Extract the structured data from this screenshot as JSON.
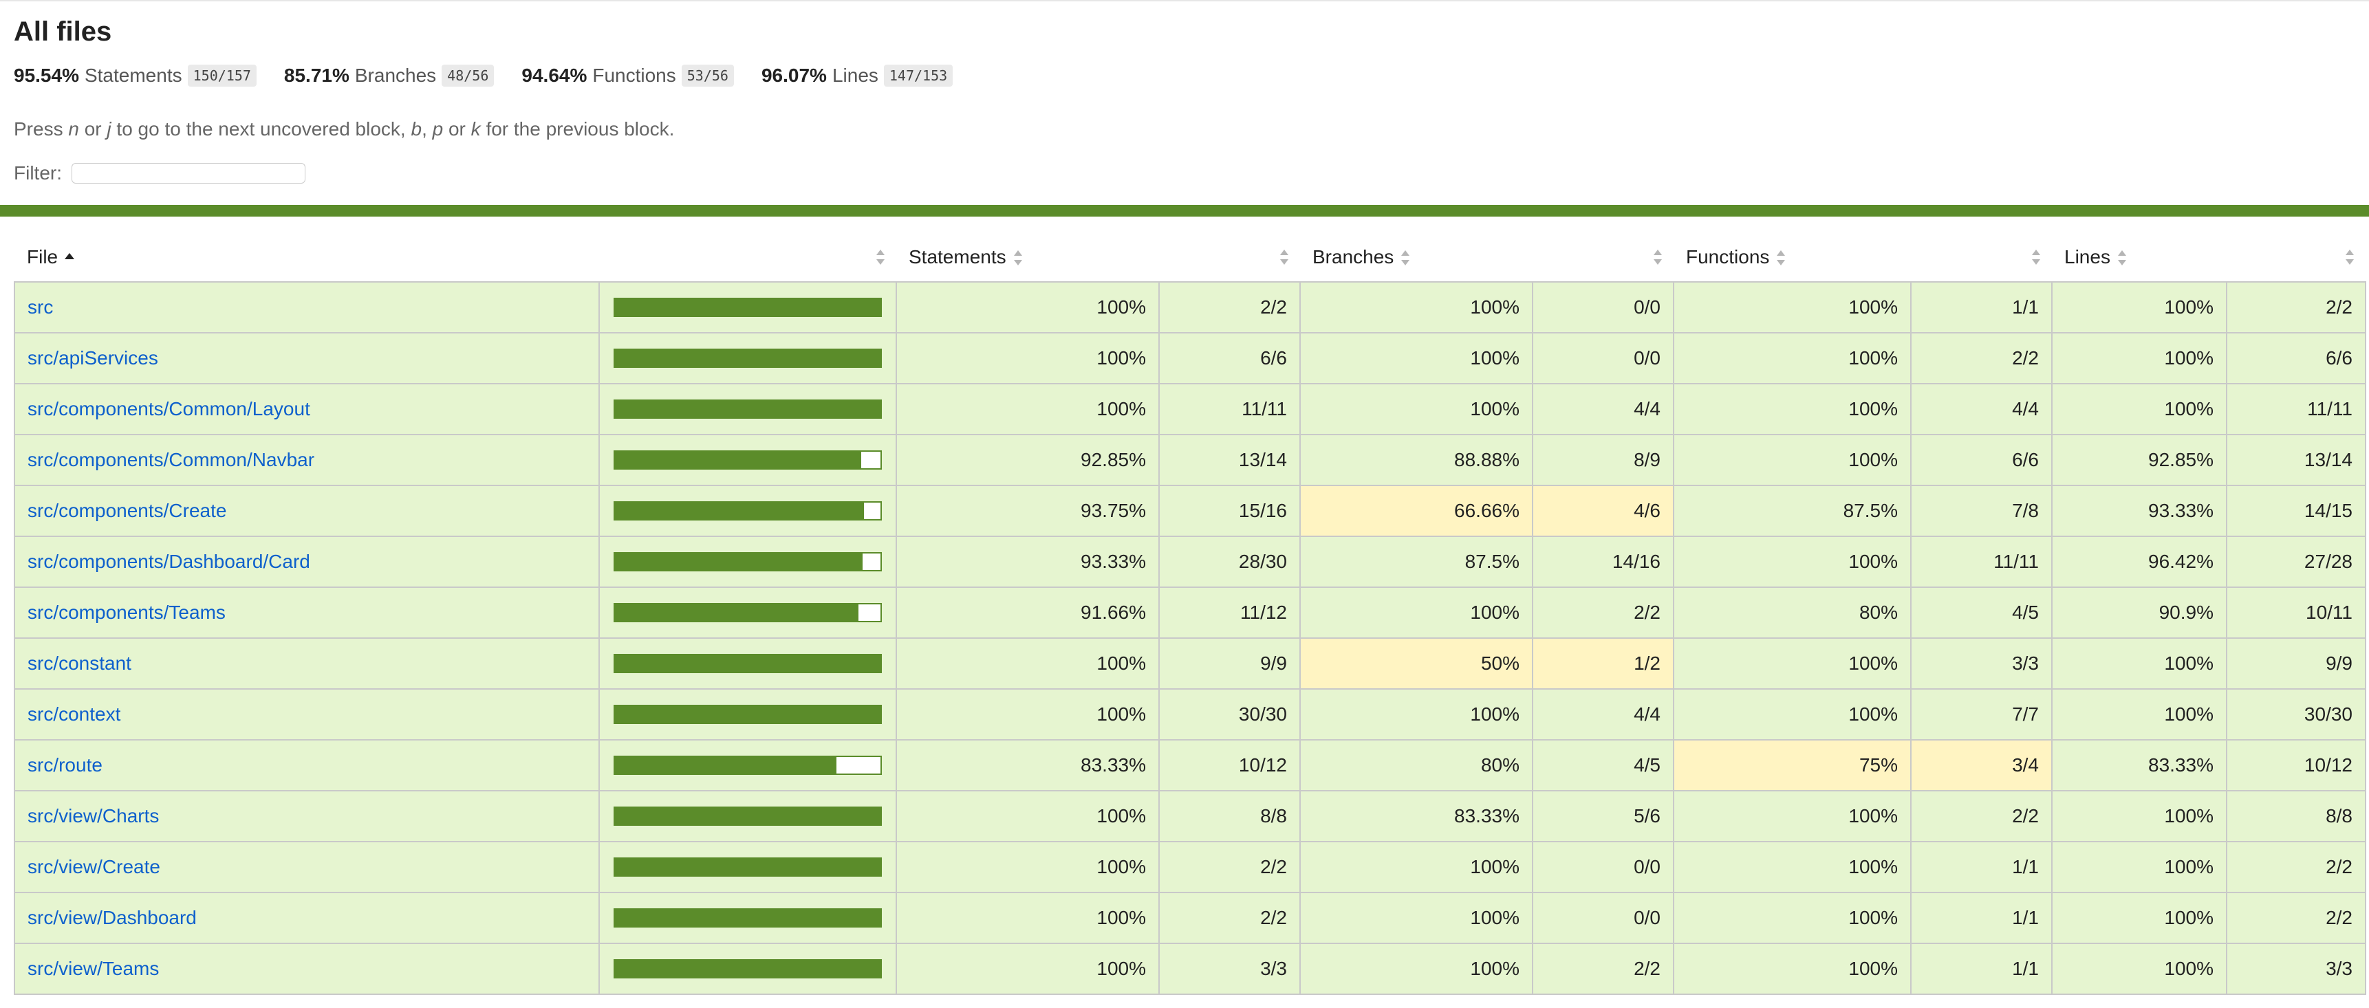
{
  "title": "All files",
  "summary": [
    {
      "pct": "95.54%",
      "label": "Statements",
      "frac": "150/157"
    },
    {
      "pct": "85.71%",
      "label": "Branches",
      "frac": "48/56"
    },
    {
      "pct": "94.64%",
      "label": "Functions",
      "frac": "53/56"
    },
    {
      "pct": "96.07%",
      "label": "Lines",
      "frac": "147/153"
    }
  ],
  "hint": {
    "t1": "Press ",
    "k1": "n",
    "t2": " or ",
    "k2": "j",
    "t3": " to go to the next uncovered block, ",
    "k3": "b",
    "t4": ", ",
    "k4": "p",
    "t5": " or ",
    "k5": "k",
    "t6": " for the previous block."
  },
  "filter": {
    "label": "Filter:",
    "value": ""
  },
  "headers": {
    "file": "File",
    "statements": "Statements",
    "branches": "Branches",
    "functions": "Functions",
    "lines": "Lines"
  },
  "colors": {
    "high": "#e6f5d0",
    "medium": "#fff4c2",
    "bar": "#5b8c2a",
    "link": "#0e60cc",
    "accent_bar": "#5b8c2a"
  },
  "rows": [
    {
      "file": "src",
      "fill": 1.0,
      "stmt_pct": "100%",
      "stmt": "2/2",
      "br_pct": "100%",
      "br": "0/0",
      "fn_pct": "100%",
      "fn": "1/1",
      "ln_pct": "100%",
      "ln": "2/2"
    },
    {
      "file": "src/apiServices",
      "fill": 1.0,
      "stmt_pct": "100%",
      "stmt": "6/6",
      "br_pct": "100%",
      "br": "0/0",
      "fn_pct": "100%",
      "fn": "2/2",
      "ln_pct": "100%",
      "ln": "6/6"
    },
    {
      "file": "src/components/Common/Layout",
      "fill": 1.0,
      "stmt_pct": "100%",
      "stmt": "11/11",
      "br_pct": "100%",
      "br": "4/4",
      "fn_pct": "100%",
      "fn": "4/4",
      "ln_pct": "100%",
      "ln": "11/11"
    },
    {
      "file": "src/components/Common/Navbar",
      "fill": 0.9285,
      "stmt_pct": "92.85%",
      "stmt": "13/14",
      "br_pct": "88.88%",
      "br": "8/9",
      "fn_pct": "100%",
      "fn": "6/6",
      "ln_pct": "92.85%",
      "ln": "13/14"
    },
    {
      "file": "src/components/Create",
      "fill": 0.9375,
      "stmt_pct": "93.75%",
      "stmt": "15/16",
      "br_pct": "66.66%",
      "br": "4/6",
      "br_medium": true,
      "fn_pct": "87.5%",
      "fn": "7/8",
      "ln_pct": "93.33%",
      "ln": "14/15"
    },
    {
      "file": "src/components/Dashboard/Card",
      "fill": 0.9333,
      "stmt_pct": "93.33%",
      "stmt": "28/30",
      "br_pct": "87.5%",
      "br": "14/16",
      "fn_pct": "100%",
      "fn": "11/11",
      "ln_pct": "96.42%",
      "ln": "27/28"
    },
    {
      "file": "src/components/Teams",
      "fill": 0.9166,
      "stmt_pct": "91.66%",
      "stmt": "11/12",
      "br_pct": "100%",
      "br": "2/2",
      "fn_pct": "80%",
      "fn": "4/5",
      "ln_pct": "90.9%",
      "ln": "10/11"
    },
    {
      "file": "src/constant",
      "fill": 1.0,
      "stmt_pct": "100%",
      "stmt": "9/9",
      "br_pct": "50%",
      "br": "1/2",
      "br_medium": true,
      "fn_pct": "100%",
      "fn": "3/3",
      "ln_pct": "100%",
      "ln": "9/9"
    },
    {
      "file": "src/context",
      "fill": 1.0,
      "stmt_pct": "100%",
      "stmt": "30/30",
      "br_pct": "100%",
      "br": "4/4",
      "fn_pct": "100%",
      "fn": "7/7",
      "ln_pct": "100%",
      "ln": "30/30"
    },
    {
      "file": "src/route",
      "fill": 0.8333,
      "stmt_pct": "83.33%",
      "stmt": "10/12",
      "br_pct": "80%",
      "br": "4/5",
      "fn_pct": "75%",
      "fn": "3/4",
      "fn_medium": true,
      "ln_pct": "83.33%",
      "ln": "10/12"
    },
    {
      "file": "src/view/Charts",
      "fill": 1.0,
      "stmt_pct": "100%",
      "stmt": "8/8",
      "br_pct": "83.33%",
      "br": "5/6",
      "fn_pct": "100%",
      "fn": "2/2",
      "ln_pct": "100%",
      "ln": "8/8"
    },
    {
      "file": "src/view/Create",
      "fill": 1.0,
      "stmt_pct": "100%",
      "stmt": "2/2",
      "br_pct": "100%",
      "br": "0/0",
      "fn_pct": "100%",
      "fn": "1/1",
      "ln_pct": "100%",
      "ln": "2/2"
    },
    {
      "file": "src/view/Dashboard",
      "fill": 1.0,
      "stmt_pct": "100%",
      "stmt": "2/2",
      "br_pct": "100%",
      "br": "0/0",
      "fn_pct": "100%",
      "fn": "1/1",
      "ln_pct": "100%",
      "ln": "2/2"
    },
    {
      "file": "src/view/Teams",
      "fill": 1.0,
      "stmt_pct": "100%",
      "stmt": "3/3",
      "br_pct": "100%",
      "br": "2/2",
      "fn_pct": "100%",
      "fn": "1/1",
      "ln_pct": "100%",
      "ln": "3/3"
    }
  ]
}
